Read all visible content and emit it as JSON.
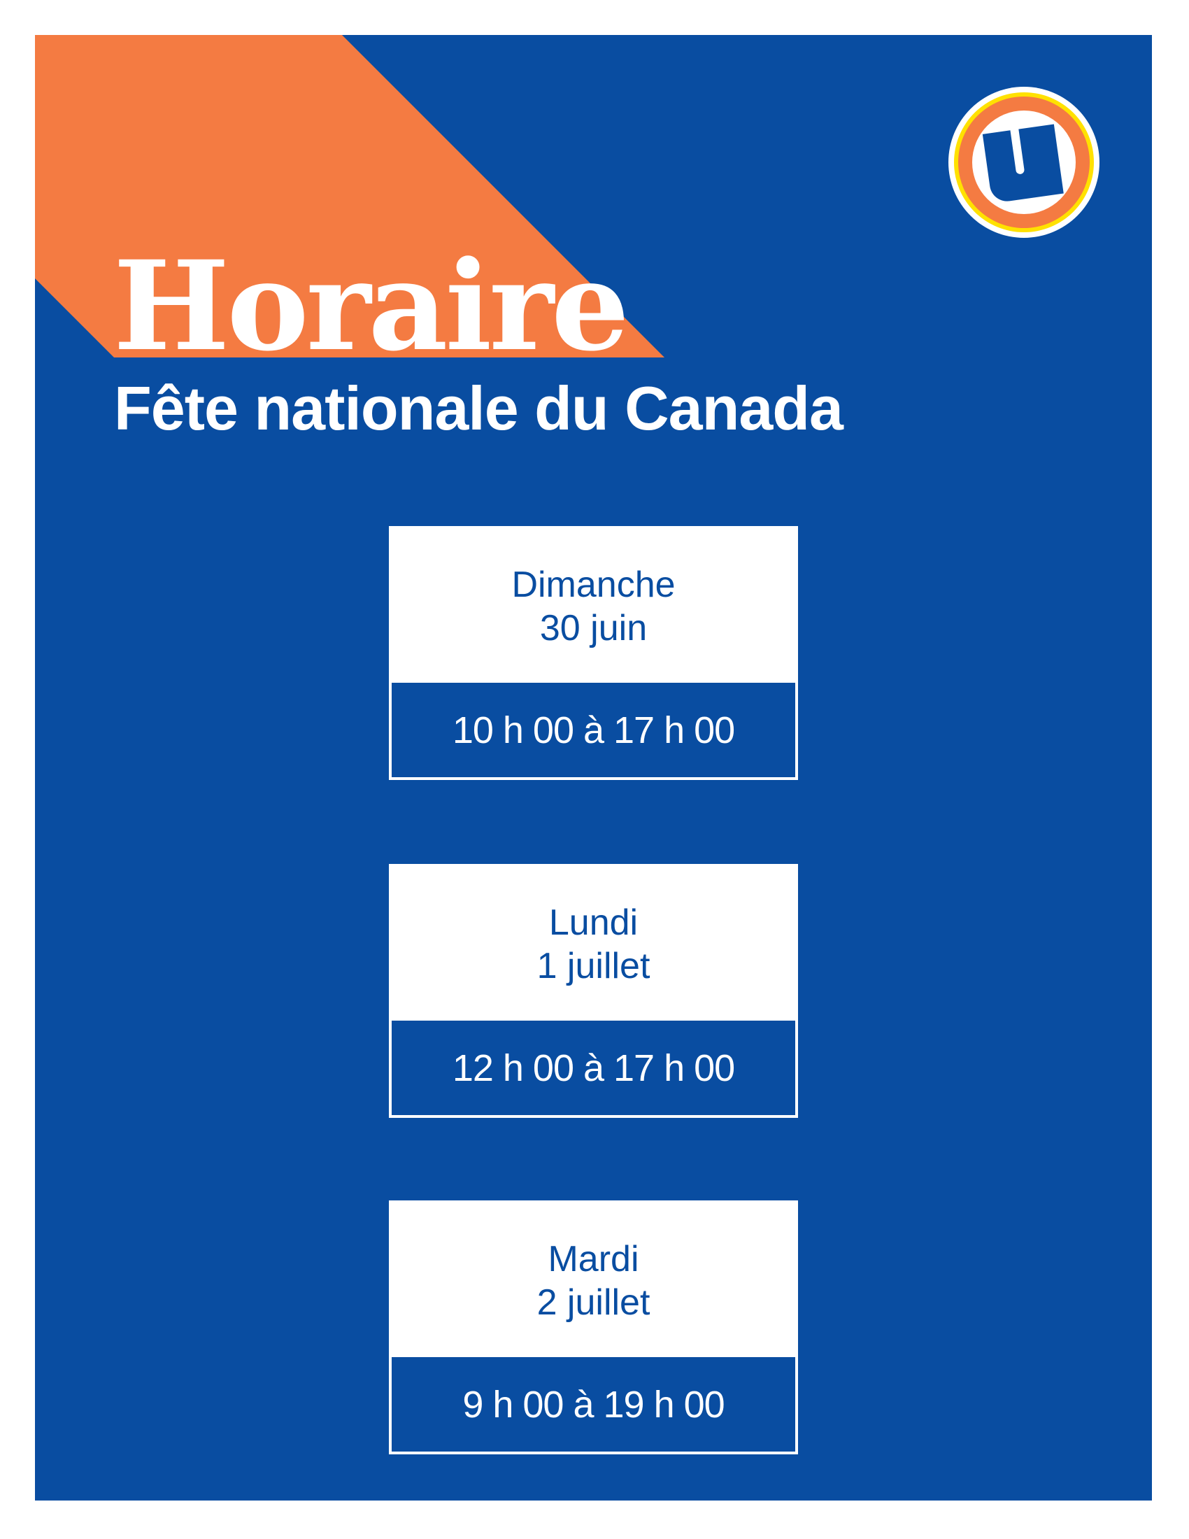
{
  "title": "Horaire",
  "subtitle": "Fête nationale du Canada",
  "logo": {
    "name": "u-logo",
    "letter": "U"
  },
  "colors": {
    "background": "#094da1",
    "accent": "#f47b42",
    "ring": "#ffe100",
    "white": "#ffffff"
  },
  "schedule": [
    {
      "day": "Dimanche",
      "date": "30 juin",
      "hours": "10 h 00 à 17 h 00"
    },
    {
      "day": "Lundi",
      "date": "1 juillet",
      "hours": "12 h 00 à 17 h 00"
    },
    {
      "day": "Mardi",
      "date": "2 juillet",
      "hours": "9 h 00 à 19 h 00"
    }
  ]
}
